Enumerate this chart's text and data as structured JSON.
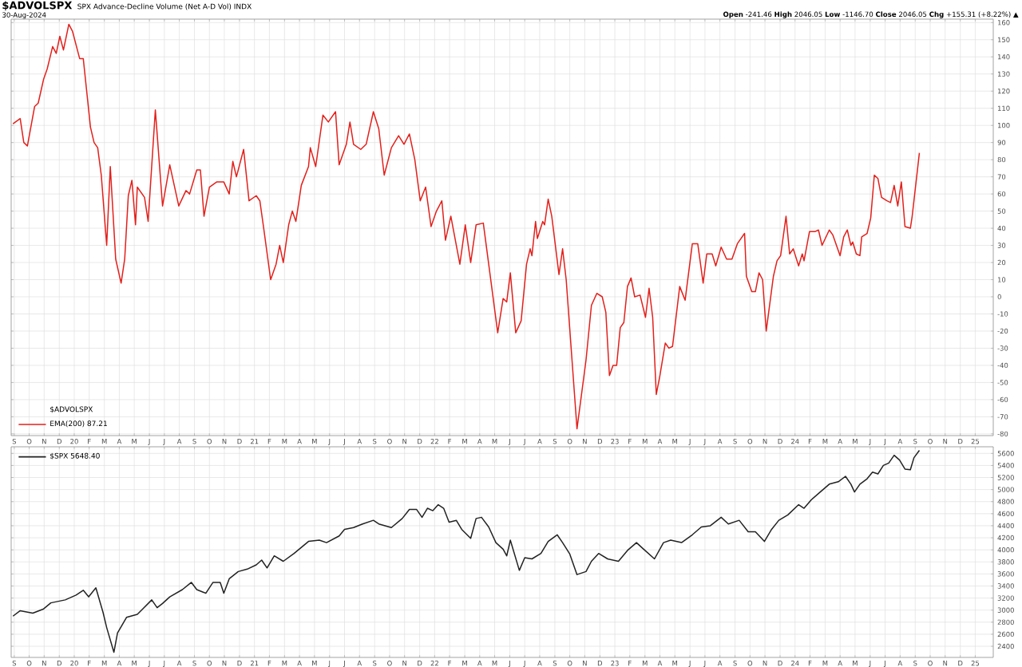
{
  "chart_data": [
    {
      "type": "line",
      "title": "$ADVOLSPX",
      "subtitle": "SPX Advance-Decline Volume (Net A-D Vol) INDX",
      "annotations": [
        "30-Aug-2024",
        "**Open** -241.46 **High** 2046.05 **Low** -1146.70 **Close** 2046.05 **Chg** +155.31 (+8.22%) ▲"
      ],
      "legend_title": "$ADVOLSPX",
      "legend": "bottom left",
      "grid": true,
      "xlim": [
        2019.65,
        2025.1
      ],
      "ylim": [
        -81,
        162
      ],
      "yticks": [
        -80,
        -70,
        -60,
        -50,
        -40,
        -30,
        -20,
        -10,
        0,
        10,
        20,
        30,
        40,
        50,
        60,
        70,
        80,
        90,
        100,
        110,
        120,
        130,
        140,
        150,
        160
      ],
      "xticks": [
        {
          "value": 2019.667,
          "label": "S"
        },
        {
          "value": 2019.75,
          "label": "O"
        },
        {
          "value": 2019.833,
          "label": "N"
        },
        {
          "value": 2019.917,
          "label": "D"
        },
        {
          "value": 2020,
          "label": "20"
        },
        {
          "value": 2020.083,
          "label": "F"
        },
        {
          "value": 2020.167,
          "label": "M"
        },
        {
          "value": 2020.25,
          "label": "A"
        },
        {
          "value": 2020.333,
          "label": "M"
        },
        {
          "value": 2020.417,
          "label": "J"
        },
        {
          "value": 2020.5,
          "label": "J"
        },
        {
          "value": 2020.583,
          "label": "A"
        },
        {
          "value": 2020.667,
          "label": "S"
        },
        {
          "value": 2020.75,
          "label": "O"
        },
        {
          "value": 2020.833,
          "label": "N"
        },
        {
          "value": 2020.917,
          "label": "D"
        },
        {
          "value": 2021,
          "label": "21"
        },
        {
          "value": 2021.083,
          "label": "F"
        },
        {
          "value": 2021.167,
          "label": "M"
        },
        {
          "value": 2021.25,
          "label": "A"
        },
        {
          "value": 2021.333,
          "label": "M"
        },
        {
          "value": 2021.417,
          "label": "J"
        },
        {
          "value": 2021.5,
          "label": "J"
        },
        {
          "value": 2021.583,
          "label": "A"
        },
        {
          "value": 2021.667,
          "label": "S"
        },
        {
          "value": 2021.75,
          "label": "O"
        },
        {
          "value": 2021.833,
          "label": "N"
        },
        {
          "value": 2021.917,
          "label": "D"
        },
        {
          "value": 2022,
          "label": "22"
        },
        {
          "value": 2022.083,
          "label": "F"
        },
        {
          "value": 2022.167,
          "label": "M"
        },
        {
          "value": 2022.25,
          "label": "A"
        },
        {
          "value": 2022.333,
          "label": "M"
        },
        {
          "value": 2022.417,
          "label": "J"
        },
        {
          "value": 2022.5,
          "label": "J"
        },
        {
          "value": 2022.583,
          "label": "A"
        },
        {
          "value": 2022.667,
          "label": "S"
        },
        {
          "value": 2022.75,
          "label": "O"
        },
        {
          "value": 2022.833,
          "label": "N"
        },
        {
          "value": 2022.917,
          "label": "D"
        },
        {
          "value": 2023,
          "label": "23"
        },
        {
          "value": 2023.083,
          "label": "F"
        },
        {
          "value": 2023.167,
          "label": "M"
        },
        {
          "value": 2023.25,
          "label": "A"
        },
        {
          "value": 2023.333,
          "label": "M"
        },
        {
          "value": 2023.417,
          "label": "J"
        },
        {
          "value": 2023.5,
          "label": "J"
        },
        {
          "value": 2023.583,
          "label": "A"
        },
        {
          "value": 2023.667,
          "label": "S"
        },
        {
          "value": 2023.75,
          "label": "O"
        },
        {
          "value": 2023.833,
          "label": "N"
        },
        {
          "value": 2023.917,
          "label": "D"
        },
        {
          "value": 2024,
          "label": "24"
        },
        {
          "value": 2024.083,
          "label": "F"
        },
        {
          "value": 2024.167,
          "label": "M"
        },
        {
          "value": 2024.25,
          "label": "A"
        },
        {
          "value": 2024.333,
          "label": "M"
        },
        {
          "value": 2024.417,
          "label": "J"
        },
        {
          "value": 2024.5,
          "label": "J"
        },
        {
          "value": 2024.583,
          "label": "A"
        },
        {
          "value": 2024.667,
          "label": "S"
        },
        {
          "value": 2024.75,
          "label": "O"
        },
        {
          "value": 2024.833,
          "label": "N"
        },
        {
          "value": 2024.917,
          "label": "D"
        },
        {
          "value": 2025,
          "label": "25"
        }
      ],
      "x": [
        2019.66,
        2019.7,
        2019.72,
        2019.74,
        2019.78,
        2019.8,
        2019.83,
        2019.85,
        2019.88,
        2019.9,
        2019.92,
        2019.94,
        2019.97,
        2019.99,
        2020.03,
        2020.05,
        2020.09,
        2020.11,
        2020.13,
        2020.15,
        2020.18,
        2020.2,
        2020.23,
        2020.26,
        2020.28,
        2020.3,
        2020.32,
        2020.34,
        2020.35,
        2020.39,
        2020.41,
        2020.45,
        2020.49,
        2020.53,
        2020.58,
        2020.62,
        2020.64,
        2020.68,
        2020.7,
        2020.72,
        2020.75,
        2020.79,
        2020.83,
        2020.86,
        2020.88,
        2020.9,
        2020.94,
        2020.97,
        2021.01,
        2021.03,
        2021.05,
        2021.09,
        2021.12,
        2021.14,
        2021.16,
        2021.19,
        2021.21,
        2021.23,
        2021.26,
        2021.3,
        2021.31,
        2021.34,
        2021.38,
        2021.41,
        2021.45,
        2021.47,
        2021.5,
        2021.51,
        2021.53,
        2021.55,
        2021.59,
        2021.62,
        2021.66,
        2021.69,
        2021.72,
        2021.76,
        2021.8,
        2021.83,
        2021.86,
        2021.89,
        2021.92,
        2021.95,
        2021.98,
        2022.01,
        2022.04,
        2022.06,
        2022.09,
        2022.14,
        2022.17,
        2022.2,
        2022.23,
        2022.27,
        2022.3,
        2022.35,
        2022.38,
        2022.4,
        2022.42,
        2022.45,
        2022.48,
        2022.51,
        2022.53,
        2022.54,
        2022.56,
        2022.57,
        2022.6,
        2022.61,
        2022.63,
        2022.65,
        2022.69,
        2022.71,
        2022.73,
        2022.79,
        2022.84,
        2022.87,
        2022.9,
        2022.93,
        2022.95,
        2022.97,
        2022.99,
        2023.01,
        2023.03,
        2023.05,
        2023.07,
        2023.09,
        2023.11,
        2023.14,
        2023.17,
        2023.19,
        2023.21,
        2023.23,
        2023.25,
        2023.28,
        2023.3,
        2023.32,
        2023.36,
        2023.39,
        2023.43,
        2023.46,
        2023.49,
        2023.51,
        2023.54,
        2023.56,
        2023.59,
        2023.62,
        2023.65,
        2023.68,
        2023.72,
        2023.73,
        2023.76,
        2023.78,
        2023.8,
        2023.82,
        2023.84,
        2023.88,
        2023.9,
        2023.92,
        2023.95,
        2023.97,
        2023.99,
        2024.02,
        2024.04,
        2024.05,
        2024.08,
        2024.11,
        2024.13,
        2024.15,
        2024.19,
        2024.21,
        2024.25,
        2024.27,
        2024.29,
        2024.31,
        2024.32,
        2024.34,
        2024.36,
        2024.37,
        2024.4,
        2024.42,
        2024.44,
        2024.46,
        2024.48,
        2024.51,
        2024.53,
        2024.55,
        2024.57,
        2024.59,
        2024.61,
        2024.64,
        2024.65,
        2024.69
      ],
      "series": [
        {
          "name": "EMA(200) 87.21",
          "color": "#e3201b",
          "values": [
            101,
            104,
            90,
            88,
            111,
            113,
            127,
            133,
            146,
            142,
            152,
            144,
            159,
            155,
            139,
            139,
            99,
            90,
            87,
            71,
            30,
            76,
            22,
            8,
            22,
            59,
            68,
            42,
            64,
            58,
            44,
            109,
            53,
            77,
            53,
            62,
            60,
            74,
            74,
            47,
            64,
            67,
            67,
            60,
            79,
            70,
            86,
            56,
            59,
            56,
            41,
            10,
            19,
            30,
            20,
            42,
            50,
            44,
            65,
            76,
            87,
            76,
            106,
            102,
            108,
            77,
            86,
            89,
            102,
            89,
            86,
            89,
            108,
            98,
            71,
            87,
            94,
            89,
            95,
            80,
            56,
            64,
            41,
            50,
            56,
            33,
            47,
            19,
            42,
            20,
            42,
            43,
            19,
            -21,
            -1,
            -3,
            14,
            -21,
            -14,
            19,
            28,
            24,
            44,
            34,
            44,
            42,
            57,
            47,
            13,
            28,
            10,
            -77,
            -37,
            -5,
            2,
            0,
            -9,
            -46,
            -40,
            -40,
            -18,
            -15,
            6,
            11,
            0,
            1,
            -12,
            5,
            -12,
            -57,
            -46,
            -27,
            -30,
            -29,
            6,
            -2,
            31,
            31,
            8,
            25,
            25,
            18,
            29,
            22,
            22,
            31,
            37,
            12,
            3,
            3,
            14,
            10,
            -20,
            12,
            21,
            24,
            47,
            25,
            28,
            18,
            25,
            21,
            38,
            38,
            39,
            30,
            39,
            36,
            24,
            35,
            39,
            30,
            32,
            25,
            24,
            35,
            37,
            46,
            71,
            69,
            58,
            56,
            55,
            65,
            53,
            67,
            41,
            40,
            47,
            84
          ]
        }
      ]
    },
    {
      "type": "line",
      "legend": "top left",
      "grid": true,
      "xlim": [
        2019.65,
        2025.1
      ],
      "ylim": [
        2215,
        5710
      ],
      "yticks": [
        2400,
        2600,
        2800,
        3000,
        3200,
        3400,
        3600,
        3800,
        4000,
        4200,
        4400,
        4600,
        4800,
        5000,
        5200,
        5400,
        5600
      ],
      "xticks": [
        {
          "value": 2019.667,
          "label": "S"
        },
        {
          "value": 2019.75,
          "label": "O"
        },
        {
          "value": 2019.833,
          "label": "N"
        },
        {
          "value": 2019.917,
          "label": "D"
        },
        {
          "value": 2020,
          "label": "20"
        },
        {
          "value": 2020.083,
          "label": "F"
        },
        {
          "value": 2020.167,
          "label": "M"
        },
        {
          "value": 2020.25,
          "label": "A"
        },
        {
          "value": 2020.333,
          "label": "M"
        },
        {
          "value": 2020.417,
          "label": "J"
        },
        {
          "value": 2020.5,
          "label": "J"
        },
        {
          "value": 2020.583,
          "label": "A"
        },
        {
          "value": 2020.667,
          "label": "S"
        },
        {
          "value": 2020.75,
          "label": "O"
        },
        {
          "value": 2020.833,
          "label": "N"
        },
        {
          "value": 2020.917,
          "label": "D"
        },
        {
          "value": 2021,
          "label": "21"
        },
        {
          "value": 2021.083,
          "label": "F"
        },
        {
          "value": 2021.167,
          "label": "M"
        },
        {
          "value": 2021.25,
          "label": "A"
        },
        {
          "value": 2021.333,
          "label": "M"
        },
        {
          "value": 2021.417,
          "label": "J"
        },
        {
          "value": 2021.5,
          "label": "J"
        },
        {
          "value": 2021.583,
          "label": "A"
        },
        {
          "value": 2021.667,
          "label": "S"
        },
        {
          "value": 2021.75,
          "label": "O"
        },
        {
          "value": 2021.833,
          "label": "N"
        },
        {
          "value": 2021.917,
          "label": "D"
        },
        {
          "value": 2022,
          "label": "22"
        },
        {
          "value": 2022.083,
          "label": "F"
        },
        {
          "value": 2022.167,
          "label": "M"
        },
        {
          "value": 2022.25,
          "label": "A"
        },
        {
          "value": 2022.333,
          "label": "M"
        },
        {
          "value": 2022.417,
          "label": "J"
        },
        {
          "value": 2022.5,
          "label": "J"
        },
        {
          "value": 2022.583,
          "label": "A"
        },
        {
          "value": 2022.667,
          "label": "S"
        },
        {
          "value": 2022.75,
          "label": "O"
        },
        {
          "value": 2022.833,
          "label": "N"
        },
        {
          "value": 2022.917,
          "label": "D"
        },
        {
          "value": 2023,
          "label": "23"
        },
        {
          "value": 2023.083,
          "label": "F"
        },
        {
          "value": 2023.167,
          "label": "M"
        },
        {
          "value": 2023.25,
          "label": "A"
        },
        {
          "value": 2023.333,
          "label": "M"
        },
        {
          "value": 2023.417,
          "label": "J"
        },
        {
          "value": 2023.5,
          "label": "J"
        },
        {
          "value": 2023.583,
          "label": "A"
        },
        {
          "value": 2023.667,
          "label": "S"
        },
        {
          "value": 2023.75,
          "label": "O"
        },
        {
          "value": 2023.833,
          "label": "N"
        },
        {
          "value": 2023.917,
          "label": "D"
        },
        {
          "value": 2024,
          "label": "24"
        },
        {
          "value": 2024.083,
          "label": "F"
        },
        {
          "value": 2024.167,
          "label": "M"
        },
        {
          "value": 2024.25,
          "label": "A"
        },
        {
          "value": 2024.333,
          "label": "M"
        },
        {
          "value": 2024.417,
          "label": "J"
        },
        {
          "value": 2024.5,
          "label": "J"
        },
        {
          "value": 2024.583,
          "label": "A"
        },
        {
          "value": 2024.667,
          "label": "S"
        },
        {
          "value": 2024.75,
          "label": "O"
        },
        {
          "value": 2024.833,
          "label": "N"
        },
        {
          "value": 2024.917,
          "label": "D"
        },
        {
          "value": 2025,
          "label": "25"
        }
      ],
      "x": [
        2019.66,
        2019.7,
        2019.77,
        2019.83,
        2019.87,
        2019.95,
        2020.01,
        2020.05,
        2020.08,
        2020.12,
        2020.16,
        2020.18,
        2020.22,
        2020.24,
        2020.29,
        2020.35,
        2020.38,
        2020.43,
        2020.46,
        2020.49,
        2020.53,
        2020.6,
        2020.65,
        2020.68,
        2020.73,
        2020.77,
        2020.81,
        2020.83,
        2020.86,
        2020.91,
        2020.96,
        2021.01,
        2021.04,
        2021.07,
        2021.11,
        2021.16,
        2021.22,
        2021.3,
        2021.36,
        2021.4,
        2021.47,
        2021.5,
        2021.55,
        2021.6,
        2021.66,
        2021.69,
        2021.76,
        2021.82,
        2021.86,
        2021.9,
        2021.93,
        2021.96,
        2021.99,
        2022.02,
        2022.05,
        2022.08,
        2022.12,
        2022.15,
        2022.2,
        2022.23,
        2022.26,
        2022.3,
        2022.34,
        2022.38,
        2022.4,
        2022.42,
        2022.47,
        2022.5,
        2022.54,
        2022.59,
        2022.63,
        2022.68,
        2022.71,
        2022.75,
        2022.79,
        2022.84,
        2022.87,
        2022.91,
        2022.96,
        2023.02,
        2023.07,
        2023.12,
        2023.16,
        2023.22,
        2023.27,
        2023.31,
        2023.37,
        2023.43,
        2023.48,
        2023.53,
        2023.59,
        2023.63,
        2023.69,
        2023.74,
        2023.78,
        2023.83,
        2023.87,
        2023.91,
        2023.96,
        2024.02,
        2024.05,
        2024.09,
        2024.14,
        2024.19,
        2024.24,
        2024.28,
        2024.31,
        2024.33,
        2024.36,
        2024.4,
        2024.43,
        2024.46,
        2024.49,
        2024.52,
        2024.55,
        2024.58,
        2024.61,
        2024.64,
        2024.66,
        2024.69
      ],
      "series": [
        {
          "name": "$SPX 5648.40",
          "color": "#222222",
          "values": [
            2900,
            2990,
            2950,
            3020,
            3120,
            3170,
            3250,
            3330,
            3220,
            3370,
            2960,
            2710,
            2300,
            2620,
            2880,
            2930,
            3020,
            3170,
            3040,
            3110,
            3220,
            3340,
            3460,
            3340,
            3280,
            3460,
            3460,
            3280,
            3520,
            3640,
            3680,
            3750,
            3830,
            3700,
            3900,
            3810,
            3940,
            4140,
            4160,
            4120,
            4230,
            4340,
            4370,
            4430,
            4490,
            4430,
            4370,
            4520,
            4670,
            4670,
            4540,
            4690,
            4650,
            4750,
            4690,
            4460,
            4490,
            4340,
            4190,
            4520,
            4540,
            4380,
            4120,
            4010,
            3900,
            4160,
            3660,
            3870,
            3850,
            3940,
            4140,
            4250,
            4120,
            3930,
            3590,
            3640,
            3810,
            3940,
            3850,
            3810,
            3990,
            4120,
            4010,
            3850,
            4120,
            4160,
            4120,
            4250,
            4380,
            4400,
            4540,
            4430,
            4490,
            4300,
            4300,
            4140,
            4340,
            4490,
            4580,
            4750,
            4690,
            4830,
            4960,
            5090,
            5130,
            5220,
            5090,
            4960,
            5090,
            5180,
            5290,
            5260,
            5400,
            5440,
            5570,
            5490,
            5340,
            5330,
            5530,
            5650
          ]
        }
      ]
    }
  ]
}
